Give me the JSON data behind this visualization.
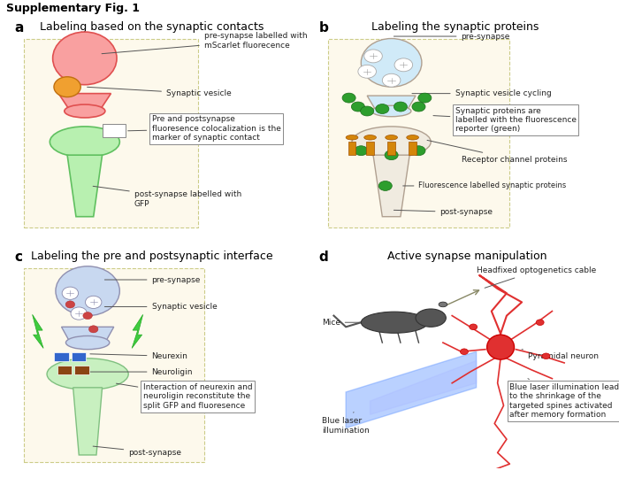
{
  "title": "Supplementary Fig. 1",
  "bg_color": "#ffffff",
  "panel_bg": "#fdf9ec",
  "dashed_color": "#cccc88",
  "text_color": "#222222",
  "arrow_color": "#555555",
  "ann_fontsize": 6.5,
  "panel_label_fontsize": 11,
  "panel_title_fontsize": 9,
  "panels": {
    "a": {
      "label": "a",
      "title": "Labeling based on the synaptic contacts",
      "pre_color": "#f9a0a0",
      "pre_edge": "#e05050",
      "post_color": "#b8f0b0",
      "post_edge": "#60c060",
      "vesicle_color": "#f0a030"
    },
    "b": {
      "label": "b",
      "title": "Labeling the synaptic proteins",
      "pre_color": "#d0eaf8",
      "pre_edge": "#b0a090",
      "post_color": "#f0ebe0",
      "post_edge": "#b0a090",
      "green_dot": "#2d9e2d",
      "receptor_color": "#d4860a"
    },
    "c": {
      "label": "c",
      "title": "Labeling the pre and postsynaptic interface",
      "pre_color": "#c8d8f0",
      "pre_edge": "#9090b0",
      "post_color": "#c8f0c0",
      "post_edge": "#80c080",
      "neurexin_color": "#3366cc",
      "neuroligin_color": "#8B4513",
      "lightning_color": "#40cc40"
    },
    "d": {
      "label": "d",
      "title": "Active synapse manipulation",
      "neuron_color": "#e03030",
      "mouse_color": "#555555",
      "laser_color": "#6699ff"
    }
  }
}
